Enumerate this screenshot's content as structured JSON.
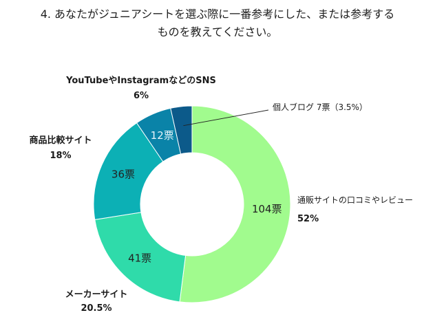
{
  "title": {
    "line1": "4. あなたがジュニアシートを選ぶ際に一番参考にした、または参考する",
    "line2": "ものを教えてください。"
  },
  "chart_data": {
    "type": "pie",
    "variant": "donut",
    "total_label_suffix": "票",
    "slices": [
      {
        "name": "通販サイトの口コミやレビュー",
        "count": 104,
        "count_label": "104票",
        "percent_label": "52%",
        "color": "#a1fb8e"
      },
      {
        "name": "メーカーサイト",
        "count": 41,
        "count_label": "41票",
        "percent_label": "20.5%",
        "color": "#2fdbaa"
      },
      {
        "name": "商品比較サイト",
        "count": 36,
        "count_label": "36票",
        "percent_label": "18%",
        "color": "#0cb0b5"
      },
      {
        "name": "YouTubeやInstagramなどのSNS",
        "count": 12,
        "count_label": "12票",
        "percent_label": "6%",
        "color": "#0a83a8"
      },
      {
        "name": "個人ブログ",
        "count": 7,
        "count_label": "7票",
        "percent_label": "3.5%",
        "color": "#0c5a8a",
        "callout": "個人ブログ 7票（3.5%）"
      }
    ]
  }
}
